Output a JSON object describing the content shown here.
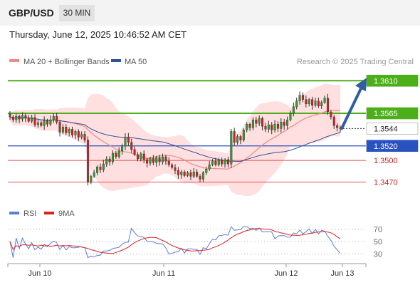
{
  "header": {
    "symbol": "GBP/USD",
    "timeframe": "30 MIN"
  },
  "datetime": "Thursday, June 12, 2025 10:46:52 AM CET",
  "credit": "Research © 2025 Trading Central",
  "legend": {
    "ma20": {
      "label": "MA 20 + Bollinger Bands",
      "color": "#f08a86"
    },
    "ma50": {
      "label": "MA 50",
      "color": "#2f5597"
    },
    "rsi": {
      "label": "RSI",
      "color": "#5b7ed6"
    },
    "ma9": {
      "label": "9MA",
      "color": "#e02020"
    }
  },
  "colors": {
    "up": "#2e9e2e",
    "down": "#cc2222",
    "resistance": "#4caf1a",
    "support_blue": "#2a52be",
    "support_red": "#e05050",
    "arrow": "#2f5fa0",
    "band": "#ffd9d9"
  },
  "chart_data": [
    {
      "type": "candlestick",
      "ylim": [
        1.3445,
        1.3625
      ],
      "x_tick_labels": [
        "Jun 10",
        "Jun 11",
        "Jun 12",
        "Jun 13"
      ],
      "levels": [
        {
          "value": 1.361,
          "label": "1.3610",
          "kind": "resistance"
        },
        {
          "value": 1.3565,
          "label": "1.3565",
          "kind": "resistance"
        },
        {
          "value": 1.3544,
          "label": "1.3544",
          "kind": "last"
        },
        {
          "value": 1.352,
          "label": "1.3520",
          "kind": "support_blue"
        },
        {
          "value": 1.35,
          "label": "1.3500",
          "kind": "support_red"
        },
        {
          "value": 1.347,
          "label": "1.3470",
          "kind": "support_red"
        }
      ],
      "arrow": {
        "from": 1.3544,
        "to": 1.3608
      },
      "closes": [
        1.356,
        1.3556,
        1.3561,
        1.3557,
        1.3562,
        1.3558,
        1.3554,
        1.3559,
        1.3549,
        1.3552,
        1.3548,
        1.3555,
        1.355,
        1.3556,
        1.3561,
        1.3553,
        1.3539,
        1.3546,
        1.3538,
        1.3543,
        1.3535,
        1.354,
        1.3532,
        1.3536,
        1.3528,
        1.347,
        1.3478,
        1.3483,
        1.3491,
        1.3487,
        1.3495,
        1.3502,
        1.3498,
        1.351,
        1.3505,
        1.3513,
        1.352,
        1.3532,
        1.3525,
        1.3515,
        1.3508,
        1.3502,
        1.3509,
        1.3501,
        1.3496,
        1.3503,
        1.3497,
        1.3504,
        1.3498,
        1.3505,
        1.3499,
        1.3494,
        1.349,
        1.3486,
        1.348,
        1.3484,
        1.3479,
        1.3483,
        1.3478,
        1.3484,
        1.3478,
        1.3474,
        1.3483,
        1.3488,
        1.3494,
        1.3499,
        1.3494,
        1.35,
        1.3495,
        1.3501,
        1.3495,
        1.354,
        1.3525,
        1.3533,
        1.3528,
        1.3542,
        1.355,
        1.3545,
        1.3556,
        1.3551,
        1.3558,
        1.3547,
        1.3543,
        1.3549,
        1.3542,
        1.355,
        1.3544,
        1.3553,
        1.3548,
        1.3556,
        1.3565,
        1.3574,
        1.3582,
        1.359,
        1.3584,
        1.3578,
        1.3584,
        1.3576,
        1.3582,
        1.3575,
        1.358,
        1.3586,
        1.3567,
        1.356,
        1.3548,
        1.3545,
        1.3544
      ]
    },
    {
      "type": "line",
      "title": "RSI",
      "ylim": [
        20,
        80
      ],
      "y_ticks": [
        70,
        50,
        30
      ],
      "y_tick_labels": [
        "70",
        "50",
        "30"
      ]
    }
  ]
}
